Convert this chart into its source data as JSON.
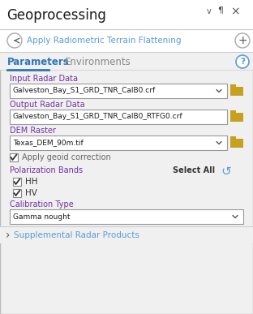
{
  "title": "Geoprocessing",
  "subtitle": "Apply Radiometric Terrain Flattening",
  "tab1": "Parameters",
  "tab2": "Environments",
  "label_input": "Input Radar Data",
  "value_input": "Galveston_Bay_S1_GRD_TNR_CalB0.crf",
  "label_output": "Output Radar Data",
  "value_output": "Galveston_Bay_S1_GRD_TNR_CalB0_RTFG0.crf",
  "label_dem": "DEM Raster",
  "value_dem": "Texas_DEM_90m.tif",
  "label_geoid": "Apply geoid correction",
  "label_pol": "Polarization Bands",
  "select_all": "Select All",
  "pol1": "HH",
  "pol2": "HV",
  "label_cal": "Calibration Type",
  "value_cal": "Gamma nought",
  "supplemental": "Supplemental Radar Products",
  "bg_color": "#f0f0f0",
  "white": "#ffffff",
  "title_color": "#1a1a1a",
  "blue_color": "#2e75b6",
  "teal_color": "#5b9bd5",
  "label_color": "#7030a0",
  "text_color": "#1a1a1a",
  "gray_text": "#666666",
  "border_color": "#b0b0b0",
  "tab_underline": "#2e75b6",
  "folder_color": "#c8a020",
  "dark_text": "#333333",
  "supplement_sep": "#cccccc"
}
